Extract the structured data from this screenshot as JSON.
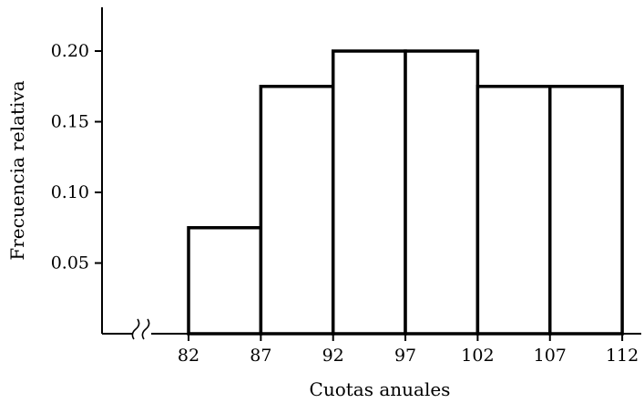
{
  "chart_data": {
    "type": "bar",
    "title": "",
    "xlabel": "Cuotas anuales",
    "ylabel": "Frecuencia relativa",
    "bin_edges": [
      82,
      87,
      92,
      97,
      102,
      107,
      112
    ],
    "x_tick_labels": [
      "82",
      "87",
      "92",
      "97",
      "102",
      "107",
      "112"
    ],
    "values": [
      0.075,
      0.175,
      0.2,
      0.2,
      0.175,
      0.175
    ],
    "y_ticks": [
      0.05,
      0.1,
      0.15,
      0.2
    ],
    "y_tick_labels": [
      "0.05",
      "0.10",
      "0.15",
      "0.20"
    ],
    "ylim": [
      0,
      0.2
    ],
    "axis_break": true,
    "grid": false,
    "colors": {
      "bar_fill": "#ffffff",
      "stroke": "#000000"
    }
  }
}
